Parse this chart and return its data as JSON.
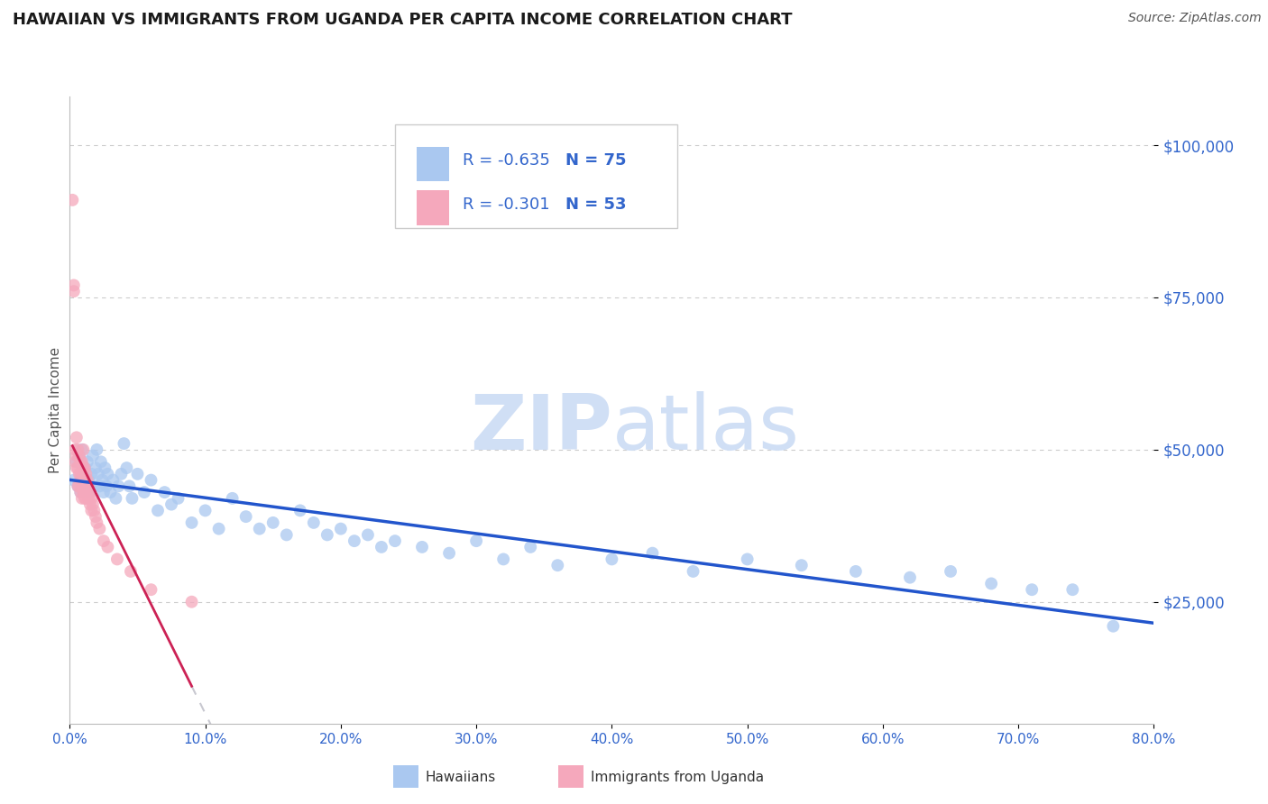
{
  "title": "HAWAIIAN VS IMMIGRANTS FROM UGANDA PER CAPITA INCOME CORRELATION CHART",
  "source": "Source: ZipAtlas.com",
  "ylabel": "Per Capita Income",
  "xmin": 0.0,
  "xmax": 0.8,
  "ymin": 5000,
  "ymax": 108000,
  "hawaiians_color": "#aac8f0",
  "uganda_color": "#f5a8bc",
  "trendline_blue": "#2255cc",
  "trendline_pink": "#cc2255",
  "trendline_gray": "#c8c8d0",
  "hawaiians_R": -0.635,
  "hawaiians_N": 75,
  "uganda_R": -0.301,
  "uganda_N": 53,
  "watermark_color": "#d0dff5",
  "hawaiians_scatter_x": [
    0.003,
    0.005,
    0.006,
    0.007,
    0.008,
    0.009,
    0.01,
    0.011,
    0.012,
    0.013,
    0.014,
    0.015,
    0.016,
    0.017,
    0.018,
    0.019,
    0.02,
    0.021,
    0.022,
    0.023,
    0.024,
    0.025,
    0.026,
    0.027,
    0.028,
    0.03,
    0.032,
    0.034,
    0.036,
    0.038,
    0.04,
    0.042,
    0.044,
    0.046,
    0.05,
    0.055,
    0.06,
    0.065,
    0.07,
    0.075,
    0.08,
    0.09,
    0.1,
    0.11,
    0.12,
    0.13,
    0.14,
    0.15,
    0.16,
    0.17,
    0.18,
    0.19,
    0.2,
    0.21,
    0.22,
    0.23,
    0.24,
    0.26,
    0.28,
    0.3,
    0.32,
    0.34,
    0.36,
    0.4,
    0.43,
    0.46,
    0.5,
    0.54,
    0.58,
    0.62,
    0.65,
    0.68,
    0.71,
    0.74,
    0.77
  ],
  "hawaiians_scatter_y": [
    45000,
    48000,
    44000,
    49000,
    43000,
    50000,
    46000,
    47000,
    44000,
    48000,
    45000,
    43000,
    46000,
    49000,
    44000,
    47000,
    50000,
    46000,
    44000,
    48000,
    45000,
    43000,
    47000,
    44000,
    46000,
    43000,
    45000,
    42000,
    44000,
    46000,
    51000,
    47000,
    44000,
    42000,
    46000,
    43000,
    45000,
    40000,
    43000,
    41000,
    42000,
    38000,
    40000,
    37000,
    42000,
    39000,
    37000,
    38000,
    36000,
    40000,
    38000,
    36000,
    37000,
    35000,
    36000,
    34000,
    35000,
    34000,
    33000,
    35000,
    32000,
    34000,
    31000,
    32000,
    33000,
    30000,
    32000,
    31000,
    30000,
    29000,
    30000,
    28000,
    27000,
    27000,
    21000
  ],
  "uganda_scatter_x": [
    0.002,
    0.003,
    0.003,
    0.004,
    0.004,
    0.005,
    0.005,
    0.005,
    0.006,
    0.006,
    0.006,
    0.007,
    0.007,
    0.007,
    0.008,
    0.008,
    0.008,
    0.008,
    0.009,
    0.009,
    0.009,
    0.009,
    0.01,
    0.01,
    0.01,
    0.01,
    0.01,
    0.011,
    0.011,
    0.011,
    0.011,
    0.012,
    0.012,
    0.012,
    0.013,
    0.013,
    0.014,
    0.014,
    0.015,
    0.015,
    0.016,
    0.016,
    0.017,
    0.018,
    0.019,
    0.02,
    0.022,
    0.025,
    0.028,
    0.035,
    0.045,
    0.06,
    0.09
  ],
  "uganda_scatter_y": [
    91000,
    77000,
    76000,
    50000,
    48000,
    52000,
    49000,
    47000,
    50000,
    47000,
    44000,
    49000,
    46000,
    44000,
    48000,
    46000,
    45000,
    43000,
    48000,
    46000,
    44000,
    42000,
    50000,
    47000,
    45000,
    44000,
    43000,
    47000,
    45000,
    43000,
    42000,
    46000,
    44000,
    42000,
    45000,
    43000,
    44000,
    42000,
    43000,
    41000,
    42000,
    40000,
    41000,
    40000,
    39000,
    38000,
    37000,
    35000,
    34000,
    32000,
    30000,
    27000,
    25000
  ]
}
